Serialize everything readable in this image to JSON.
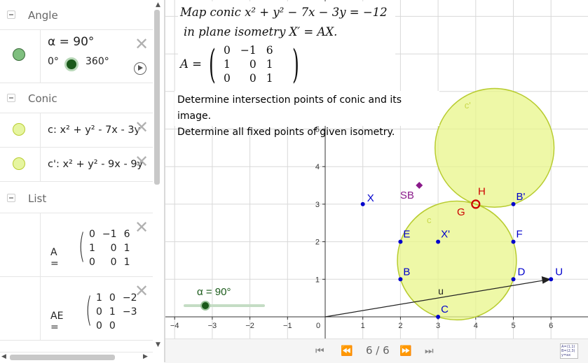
{
  "algebra": {
    "groups": [
      {
        "name": "Angle"
      },
      {
        "name": "Conic"
      },
      {
        "name": "List"
      }
    ],
    "angle_item": {
      "text": "α = 90°",
      "min": "0°",
      "max": "360°",
      "color": "#7fbf7f"
    },
    "conic_items": [
      {
        "text": "c: x² + y² - 7x - 3y",
        "color": "#e6f5a0"
      },
      {
        "text": "c': x² + y² - 9x - 9y",
        "color": "#e6f5a0"
      }
    ],
    "matrix_A": {
      "label": "A =",
      "rows": [
        [
          "0",
          "−1",
          "6"
        ],
        [
          "1",
          "0",
          "1"
        ],
        [
          "0",
          "0",
          "1"
        ]
      ]
    },
    "matrix_AE": {
      "label": "AE =",
      "rows": [
        [
          "1",
          "0",
          "−2"
        ],
        [
          "0",
          "1",
          "−3"
        ],
        [
          "0",
          "0",
          ""
        ]
      ]
    }
  },
  "graphics": {
    "math_line1": "Map conic x² + y² − 7x − 3y = −12",
    "math_line2": "in plane isometry X′ = AX.",
    "matrix_label": "A =",
    "matrix_rows": [
      [
        "0",
        "−1",
        "6"
      ],
      [
        "1",
        "0",
        "1"
      ],
      [
        "0",
        "0",
        "1"
      ]
    ],
    "task_line1": "Determine intersection points of conic and its image.",
    "task_line2": "Determine all fixed points of given isometry.",
    "slider_label": "α = 90°",
    "x_ticks": [
      "−4",
      "−3",
      "−2",
      "−1",
      "0",
      "1",
      "2",
      "3",
      "4",
      "5",
      "6"
    ],
    "y_ticks": [
      "1",
      "2",
      "3",
      "4",
      "5"
    ],
    "points": [
      {
        "name": "X",
        "x": 1,
        "y": 3
      },
      {
        "name": "X'",
        "x": 3,
        "y": 2
      },
      {
        "name": "E",
        "x": 2,
        "y": 2
      },
      {
        "name": "F",
        "x": 5,
        "y": 2
      },
      {
        "name": "B",
        "x": 2,
        "y": 1
      },
      {
        "name": "D",
        "x": 5,
        "y": 1
      },
      {
        "name": "C",
        "x": 3,
        "y": 0
      },
      {
        "name": "B'",
        "x": 5,
        "y": 3
      },
      {
        "name": "U",
        "x": 6,
        "y": 1
      }
    ],
    "special_labels": {
      "H": "H",
      "G": "G",
      "SB": "SB",
      "c": "c",
      "c_prime": "c'",
      "u": "u"
    },
    "colors": {
      "point": "#0000cc",
      "conic_fill": "#e8f58a",
      "conic_stroke": "#b8cc30",
      "special": "#cc0000",
      "sb": "#8a1a8a",
      "slider": "#1a5a1a"
    }
  },
  "navigation": {
    "step": "6 / 6"
  }
}
